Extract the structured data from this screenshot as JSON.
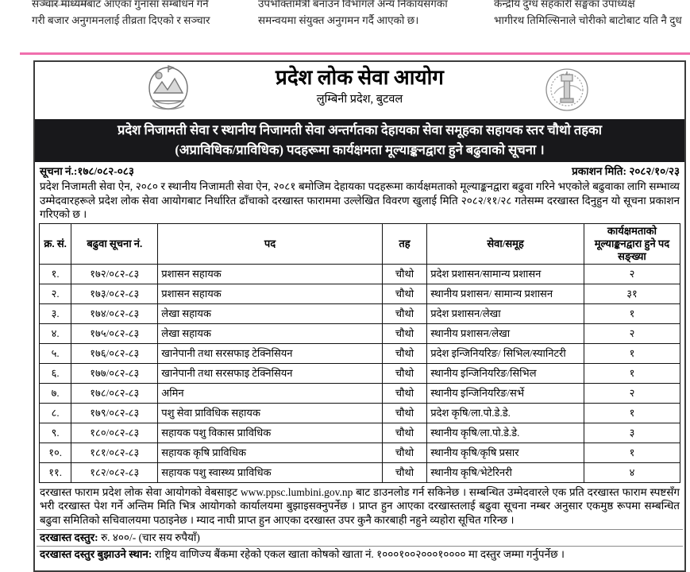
{
  "colors": {
    "accent_pink": "#f06fad",
    "banner_bg": "#18181b",
    "banner_text": "#ffffff"
  },
  "newspaper": {
    "col1_line1": "सञ्चार माध्यमबाट आएका गुनासा सम्बोधन गर्न",
    "col1_line2": "गरी बजार अनुगमनलाई तीव्रता दिएको र सञ्चार",
    "col2_line1": "उपभोक्तामैत्री बनाउन विभागले अन्य निकायसँगका",
    "col2_line2": "समन्वयमा संयुक्त अनुगमन गर्दै आएको छ।",
    "col3_line1": "केन्द्रीय दुग्ध सहकारी सङ्घका उपाध्यक्ष",
    "col3_line2": "भागीरथ तिमिल्सिनाले चोरीको बाटोबाट यति नै दुध"
  },
  "commission": {
    "name": "प्रदेश लोक सेवा आयोग",
    "address": "लुम्बिनी प्रदेश, बुटवल"
  },
  "icons": {
    "left_logo": "nepal-emblem-icon",
    "right_logo": "commission-seal-icon"
  },
  "banner": {
    "line1": "प्रदेश निजामती सेवा र स्थानीय निजामती सेवा अन्तर्गतका देहायका सेवा समूहका सहायक स्तर चौथो तहका",
    "line2": "(अप्राविधिक/प्राविधिक) पदहरूमा कार्यक्षमता मूल्याङ्कनद्वारा हुने बढुवाको सूचना ।"
  },
  "meta": {
    "notice_no": "सूचना नं.:१७८/०८२-०८३",
    "publish_date": "प्रकाशन मिति: २०८२/१०/२३"
  },
  "intro": "प्रदेश निजामती सेवा ऐन, २०८० र स्थानीय निजामती सेवा ऐन, २०८१ बमोजिम देहायका पदहरूमा कार्यक्षमताको मूल्याङ्कनद्वारा बढुवा गरिने भएकोले बढुवाका लागि सम्भाव्य उम्मेदवारहरूले प्रदेश लोक सेवा आयोगबाट निर्धारित ढाँचाको दरखास्त फाराममा उल्लेखित विवरण खुलाई मिति २०८२/११/२८ गतेसम्म दरखास्त दिनुहुन यो सूचना प्रकाशन गरिएको छ ।",
  "table": {
    "headers": [
      "क्र. सं.",
      "बढुवा सूचना नं.",
      "पद",
      "तह",
      "सेवा/समूह",
      "कार्यक्षमताको मूल्याङ्कनद्वारा हुने पद सङ्ख्या"
    ],
    "col_widths": [
      "5%",
      "13.5%",
      "35%",
      "7%",
      "24.5%",
      "15%"
    ],
    "rows": [
      [
        "१.",
        "१७२/०८२-८३",
        "प्रशासन सहायक",
        "चौथो",
        "प्रदेश प्रशासन/सामान्य प्रशासन",
        "२"
      ],
      [
        "२.",
        "१७३/०८२-८३",
        "प्रशासन सहायक",
        "चौथो",
        "स्थानीय प्रशासन/ सामान्य प्रशासन",
        "३१"
      ],
      [
        "३.",
        "१७४/०८२-८३",
        "लेखा सहायक",
        "चौथो",
        "प्रदेश प्रशासन/लेखा",
        "१"
      ],
      [
        "४.",
        "१७५/०८२-८३",
        "लेखा सहायक",
        "चौथो",
        "स्थानीय प्रशासन/लेखा",
        "२"
      ],
      [
        "५.",
        "१७६/०८२-८३",
        "खानेपानी तथा सरसफाइ टेक्निसियन",
        "चौथो",
        "प्रदेश इन्जिनियरिङ/ सिभिल/स्यानिटरी",
        "१"
      ],
      [
        "६.",
        "१७७/०८२-८३",
        "खानेपानी तथा सरसफाइ टेक्निसियन",
        "चौथो",
        "स्थानीय इन्जिनियरिङ/सिभिल",
        "१"
      ],
      [
        "७.",
        "१७८/०८२-८३",
        "अमिन",
        "चौथो",
        "स्थानीय इन्जिनियरिङ/सर्भे",
        "२"
      ],
      [
        "८.",
        "१७९/०८२-८३",
        "पशु सेवा प्राविधिक सहायक",
        "चौथो",
        "प्रदेश कृषि/ला.पो.डे.डे.",
        "१"
      ],
      [
        "९.",
        "१८०/०८२-८३",
        "सहायक पशु विकास प्राविधिक",
        "चौथो",
        "स्थानीय कृषि/ला.पो.डे.डे.",
        "३"
      ],
      [
        "१०.",
        "१८१/०८२-८३",
        "सहायक कृषि प्राविधिक",
        "चौथो",
        "स्थानीय कृषि/कृषि प्रसार",
        "१"
      ],
      [
        "११.",
        "१८२/०८२-८३",
        "सहायक पशु स्वास्थ्य प्राविधिक",
        "चौथो",
        "स्थानीय कृषि/भेटेरिनरी",
        "४"
      ]
    ]
  },
  "outro": "दरखास्त फाराम प्रदेश लोक सेवा आयोगको वेबसाइट www.ppsc.lumbini.gov.np बाट डाउनलोड गर्न सकिनेछ । सम्बन्धित उम्मेदवारले एक प्रति दरखास्त फाराम स्पष्टसँग भरी दरखास्त पेश गर्ने अन्तिम मिति भित्र आयोगको कार्यालयमा बुझाइसक्नुपर्नेछ । प्राप्त हुन आएका दरखास्तलाई बढुवा सूचना नम्बर अनुसार एकमुष्ठ रूपमा सम्बन्धित बढुवा समितिको सचिवालयमा पठाइनेछ । म्याद नाघी प्राप्त हुन आएका दरखास्त उपर कुनै कारबाही नहुने व्यहोरा सूचित गरिन्छ ।",
  "fee": {
    "label": "दरखास्त दस्तुर:",
    "value": " रु. ४००/- (चार सय रुपैयाँ)"
  },
  "payment": {
    "label": "दरखास्त दस्तुर बुझाउने स्थान:",
    "value": " राष्ट्रिय वाणिज्य बैंकमा रहेको एकल खाता कोषको खाता नं. १०००१००२०००१०००० मा दस्तुर जम्मा गर्नुपर्नेछ ।"
  }
}
